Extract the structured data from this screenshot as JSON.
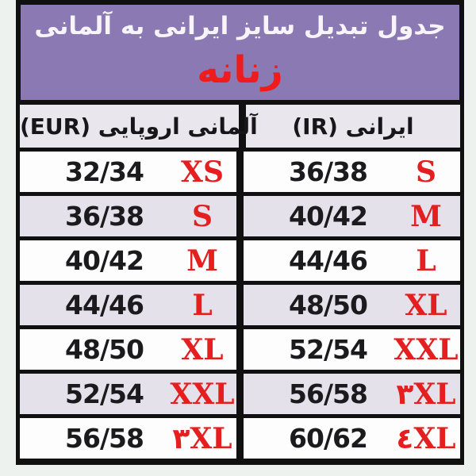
{
  "title": {
    "line1": "جدول تبدیل سایز ایرانی به آلمانی",
    "line2": "زنانه"
  },
  "columns": {
    "eur": "آلمانی اروپایی (EUR)",
    "ir": "ایرانی (IR)"
  },
  "table": {
    "rows": [
      {
        "eur_num": "32/34",
        "eur_size": "XS",
        "ir_num": "36/38",
        "ir_size": "S"
      },
      {
        "eur_num": "36/38",
        "eur_size": "S",
        "ir_num": "40/42",
        "ir_size": "M"
      },
      {
        "eur_num": "40/42",
        "eur_size": "M",
        "ir_num": "44/46",
        "ir_size": "L"
      },
      {
        "eur_num": "44/46",
        "eur_size": "L",
        "ir_num": "48/50",
        "ir_size": "XL"
      },
      {
        "eur_num": "48/50",
        "eur_size": "XL",
        "ir_num": "52/54",
        "ir_size": "XXL"
      },
      {
        "eur_num": "52/54",
        "eur_size": "XXL",
        "ir_num": "56/58",
        "ir_size": "۳XL"
      },
      {
        "eur_num": "56/58",
        "eur_size": "۳XL",
        "ir_num": "60/62",
        "ir_size": "٤XL"
      }
    ]
  },
  "colors": {
    "banner_purple": "#8a79b2",
    "accent_red": "#e51f1f",
    "row_alt_lavender": "#e4e1eb",
    "header_gray": "#e9e7ed",
    "border_black": "#101010",
    "page_bg": "#edf2ee"
  },
  "chart_data": {
    "type": "table",
    "title": "جدول تبدیل سایز ایرانی به آلمانی",
    "subtitle": "زنانه",
    "columns": [
      "آلمانی اروپایی (EUR)",
      "ایرانی (IR)"
    ],
    "rows": [
      [
        "32/34 XS",
        "36/38 S"
      ],
      [
        "36/38 S",
        "40/42 M"
      ],
      [
        "40/42 M",
        "44/46 L"
      ],
      [
        "44/46 L",
        "48/50 XL"
      ],
      [
        "48/50 XL",
        "52/54 XXL"
      ],
      [
        "52/54 XXL",
        "56/58 ۳XL"
      ],
      [
        "56/58 ۳XL",
        "60/62 ٤XL"
      ]
    ]
  }
}
